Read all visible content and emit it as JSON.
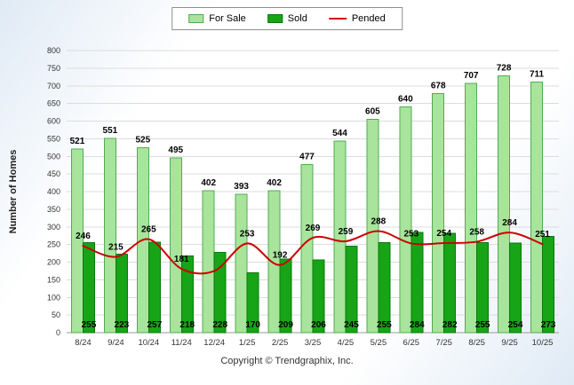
{
  "legend": {
    "for_sale": "For Sale",
    "sold": "Sold",
    "pended": "Pended"
  },
  "ylabel": "Number of Homes",
  "footer": "Copyright © Trendgraphix, Inc.",
  "chart_data": {
    "type": "bar",
    "title": "",
    "xlabel": "",
    "ylabel": "Number of Homes",
    "categories": [
      "8/24",
      "9/24",
      "10/24",
      "11/24",
      "12/24",
      "1/25",
      "2/25",
      "3/25",
      "4/25",
      "5/25",
      "6/25",
      "7/25",
      "8/25",
      "9/25",
      "10/25"
    ],
    "series": [
      {
        "name": "For Sale",
        "type": "bar",
        "color": "#a8e49c",
        "border": "#4fae4f",
        "values": [
          521,
          551,
          525,
          495,
          402,
          393,
          402,
          477,
          544,
          605,
          640,
          678,
          707,
          728,
          711
        ]
      },
      {
        "name": "Sold",
        "type": "bar",
        "color": "#17a417",
        "border": "#0a7a0a",
        "values": [
          255,
          223,
          257,
          218,
          228,
          170,
          209,
          206,
          245,
          255,
          284,
          282,
          255,
          254,
          273
        ]
      },
      {
        "name": "Pended",
        "type": "line",
        "color": "#cc0000",
        "values": [
          246,
          215,
          265,
          181,
          175,
          253,
          192,
          269,
          259,
          288,
          253,
          254,
          258,
          284,
          251
        ],
        "hidden_label_indices": [
          4
        ]
      }
    ],
    "ylim": [
      0,
      800
    ],
    "ytick_step": 50,
    "grid": true,
    "legend_position": "top"
  }
}
